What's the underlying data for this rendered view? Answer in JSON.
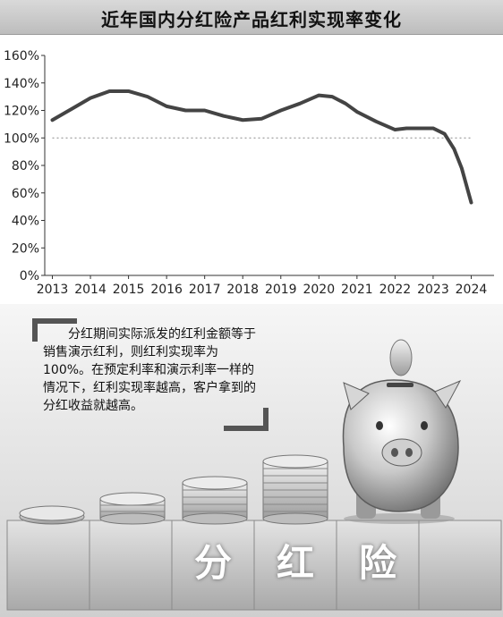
{
  "title": "近年国内分红险产品红利实现率变化",
  "note": "分红期间实际派发的红利金额等于销售演示红利，则红利实现率为100%。在预定利率和演示利率一样的情况下，红利实现率越高，客户拿到的分红收益就越高。",
  "block_chars": [
    "分",
    "红",
    "险"
  ],
  "colors": {
    "line": "#444444",
    "reference_line": "#888888",
    "blocks": "#d8d8d8"
  },
  "chart_data": {
    "type": "line",
    "title": "近年国内分红险产品红利实现率变化",
    "xlabel": "",
    "ylabel": "",
    "x_ticks": [
      "2013",
      "2014",
      "2015",
      "2016",
      "2017",
      "2018",
      "2019",
      "2020",
      "2021",
      "2022",
      "2023",
      "2024"
    ],
    "y_ticks": [
      "0%",
      "20%",
      "40%",
      "60%",
      "80%",
      "100%",
      "120%",
      "140%",
      "160%"
    ],
    "ylim": [
      0,
      160
    ],
    "xlim": [
      2012.8,
      2024.6
    ],
    "reference_line": {
      "y": 100,
      "style": "dotted"
    },
    "grid": false,
    "series": [
      {
        "x": [
          2013.0,
          2013.5,
          2014.0,
          2014.5,
          2015.0,
          2015.5,
          2016.0,
          2016.5,
          2017.0,
          2017.5,
          2018.0,
          2018.5,
          2019.0,
          2019.5,
          2020.0,
          2020.35,
          2020.7,
          2021.0,
          2021.5,
          2022.0,
          2022.3,
          2022.7,
          2023.0,
          2023.3,
          2023.55,
          2023.75,
          2024.0
        ],
        "y": [
          113,
          121,
          129,
          134,
          134,
          130,
          123,
          120,
          120,
          116,
          113,
          114,
          120,
          125,
          131,
          130,
          125,
          119,
          112,
          106,
          107,
          107,
          107,
          103,
          92,
          78,
          53
        ]
      }
    ]
  }
}
